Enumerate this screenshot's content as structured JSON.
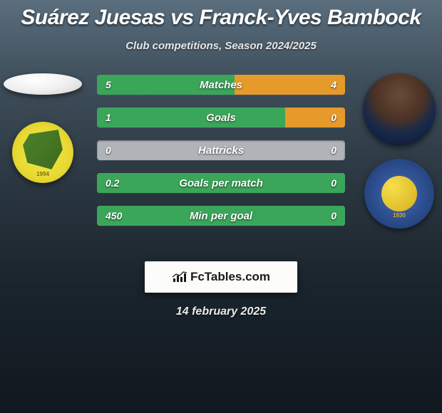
{
  "title": "Suárez Juesas vs Franck-Yves Bambock",
  "subtitle": "Club competitions, Season 2024/2025",
  "date": "14 february 2025",
  "colors": {
    "left_bar": "#3aa65a",
    "right_bar": "#e59a2a",
    "neutral_bar": "#b0b4b8"
  },
  "player_left": {
    "name": "Suárez Juesas",
    "club_badge_year": "1994"
  },
  "player_right": {
    "name": "Franck-Yves Bambock",
    "club_badge_year": "1930"
  },
  "stats": [
    {
      "label": "Matches",
      "left_val": "5",
      "right_val": "4",
      "left_pct": 55.5,
      "right_pct": 44.5
    },
    {
      "label": "Goals",
      "left_val": "1",
      "right_val": "0",
      "left_pct": 76,
      "right_pct": 24
    },
    {
      "label": "Hattricks",
      "left_val": "0",
      "right_val": "0",
      "left_pct": 0,
      "right_pct": 0
    },
    {
      "label": "Goals per match",
      "left_val": "0.2",
      "right_val": "0",
      "left_pct": 100,
      "right_pct": 0
    },
    {
      "label": "Min per goal",
      "left_val": "450",
      "right_val": "0",
      "left_pct": 100,
      "right_pct": 0
    }
  ],
  "footer_brand": "FcTables.com"
}
